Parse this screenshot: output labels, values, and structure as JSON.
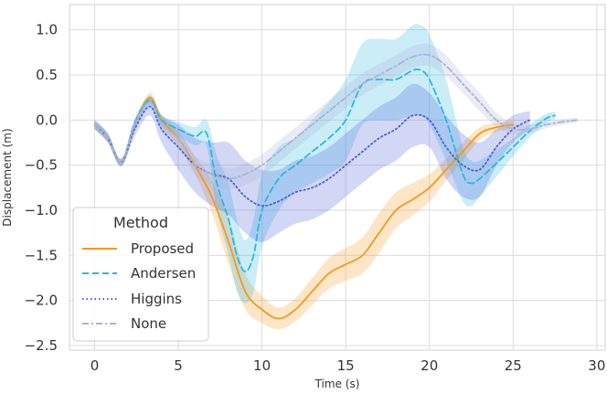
{
  "chart_data": {
    "type": "line",
    "xlabel": "Time (s)",
    "ylabel": "Displacement (m)",
    "xlim": [
      -1.5,
      30.5
    ],
    "ylim": [
      -2.55,
      1.28
    ],
    "xticks": [
      0,
      5,
      10,
      15,
      20,
      25,
      30
    ],
    "yticks": [
      1.0,
      0.5,
      0.0,
      -0.5,
      -1.0,
      -1.5,
      -2.0,
      -2.5
    ],
    "xtick_labels": [
      "0",
      "5",
      "10",
      "15",
      "20",
      "25",
      "30"
    ],
    "ytick_labels": [
      "1.0",
      "0.5",
      "0.0",
      "−0.5",
      "−1.0",
      "−1.5",
      "−2.0",
      "−2.5"
    ],
    "grid": true,
    "legend": {
      "title": "Method",
      "placement": "lower-left"
    },
    "series": [
      {
        "name": "Proposed",
        "color": "#f39a1f",
        "dash": "solid",
        "x": [
          0,
          0.8,
          1.6,
          2.4,
          3.3,
          4.0,
          5.0,
          6.0,
          7.0,
          8.0,
          9.0,
          10.0,
          11.0,
          12.0,
          13.0,
          14.0,
          15.0,
          16.0,
          17.0,
          18.0,
          19.0,
          20.0,
          21.0,
          22.0,
          23.0,
          24.0,
          25.0
        ],
        "y": [
          -0.05,
          -0.2,
          -0.47,
          -0.05,
          0.25,
          0.0,
          -0.2,
          -0.5,
          -0.85,
          -1.35,
          -1.9,
          -2.1,
          -2.2,
          -2.1,
          -1.9,
          -1.7,
          -1.6,
          -1.5,
          -1.25,
          -1.0,
          -0.88,
          -0.75,
          -0.55,
          -0.35,
          -0.15,
          -0.08,
          -0.05
        ],
        "band": [
          0.05,
          0.05,
          0.04,
          0.05,
          0.05,
          0.06,
          0.08,
          0.1,
          0.18,
          0.25,
          0.2,
          0.15,
          0.12,
          0.13,
          0.15,
          0.17,
          0.18,
          0.2,
          0.22,
          0.2,
          0.18,
          0.15,
          0.12,
          0.1,
          0.07,
          0.05,
          0.04
        ]
      },
      {
        "name": "Andersen",
        "color": "#2ab7e2",
        "dash": "dashed",
        "x": [
          0,
          0.8,
          1.6,
          2.4,
          3.3,
          4.0,
          5.0,
          6.0,
          6.7,
          7.3,
          8.0,
          8.5,
          9.0,
          9.5,
          10.0,
          11.0,
          12.0,
          13.0,
          14.0,
          15.0,
          16.0,
          17.0,
          18.0,
          19.0,
          19.5,
          20.0,
          21.0,
          22.0,
          22.5,
          23.0,
          24.0,
          25.0,
          26.0,
          27.0,
          27.5
        ],
        "y": [
          -0.05,
          -0.2,
          -0.47,
          -0.03,
          0.22,
          0.0,
          -0.1,
          -0.18,
          -0.15,
          -0.7,
          -1.1,
          -1.5,
          -1.68,
          -1.5,
          -1.0,
          -0.65,
          -0.5,
          -0.35,
          -0.2,
          0.0,
          0.4,
          0.45,
          0.45,
          0.55,
          0.55,
          0.45,
          0.0,
          -0.6,
          -0.7,
          -0.65,
          -0.48,
          -0.3,
          -0.12,
          0.02,
          0.05
        ],
        "band": [
          0.05,
          0.05,
          0.04,
          0.05,
          0.05,
          0.06,
          0.08,
          0.1,
          0.15,
          0.3,
          0.4,
          0.4,
          0.35,
          0.4,
          0.4,
          0.35,
          0.3,
          0.35,
          0.4,
          0.45,
          0.45,
          0.45,
          0.45,
          0.5,
          0.5,
          0.5,
          0.45,
          0.3,
          0.25,
          0.2,
          0.15,
          0.1,
          0.07,
          0.05,
          0.04
        ]
      },
      {
        "name": "Higgins",
        "color": "#4a5fd6",
        "dash": "dotted",
        "x": [
          0,
          0.8,
          1.6,
          2.4,
          3.3,
          4.0,
          5.0,
          6.0,
          7.0,
          8.0,
          9.0,
          10.0,
          11.0,
          12.0,
          13.0,
          14.0,
          15.0,
          16.0,
          17.0,
          18.0,
          19.0,
          20.0,
          21.0,
          22.0,
          23.0,
          24.0,
          25.0,
          26.0
        ],
        "y": [
          -0.05,
          -0.2,
          -0.47,
          -0.1,
          0.15,
          -0.1,
          -0.3,
          -0.5,
          -0.6,
          -0.65,
          -0.85,
          -0.95,
          -0.9,
          -0.8,
          -0.75,
          -0.65,
          -0.5,
          -0.35,
          -0.2,
          -0.1,
          0.05,
          0.0,
          -0.3,
          -0.5,
          -0.55,
          -0.3,
          -0.1,
          0.0
        ],
        "band": [
          0.05,
          0.05,
          0.04,
          0.08,
          0.1,
          0.15,
          0.25,
          0.3,
          0.35,
          0.4,
          0.4,
          0.4,
          0.35,
          0.35,
          0.35,
          0.35,
          0.35,
          0.35,
          0.35,
          0.35,
          0.35,
          0.3,
          0.35,
          0.35,
          0.3,
          0.2,
          0.15,
          0.1
        ]
      },
      {
        "name": "None",
        "color": "#a9b3d8",
        "dash": "dashdot",
        "x": [
          0,
          0.8,
          1.6,
          2.4,
          3.3,
          4.0,
          5.0,
          6.0,
          7.0,
          8.0,
          9.0,
          10.0,
          11.0,
          12.0,
          13.0,
          14.0,
          15.0,
          16.0,
          17.0,
          18.0,
          19.0,
          20.0,
          21.0,
          22.0,
          23.0,
          24.0,
          25.0,
          26.0,
          27.0,
          28.0,
          28.8
        ],
        "y": [
          -0.05,
          -0.2,
          -0.47,
          -0.05,
          0.2,
          -0.05,
          -0.2,
          -0.5,
          -0.6,
          -0.65,
          -0.6,
          -0.5,
          -0.35,
          -0.2,
          -0.05,
          0.1,
          0.25,
          0.4,
          0.5,
          0.6,
          0.7,
          0.72,
          0.6,
          0.4,
          0.2,
          0.0,
          -0.1,
          -0.1,
          -0.05,
          -0.02,
          0.0
        ],
        "band": [
          0.05,
          0.05,
          0.04,
          0.05,
          0.05,
          0.06,
          0.08,
          0.1,
          0.12,
          0.12,
          0.12,
          0.12,
          0.12,
          0.12,
          0.12,
          0.12,
          0.12,
          0.12,
          0.12,
          0.12,
          0.12,
          0.12,
          0.12,
          0.1,
          0.1,
          0.08,
          0.06,
          0.05,
          0.04,
          0.03,
          0.03
        ]
      }
    ]
  }
}
